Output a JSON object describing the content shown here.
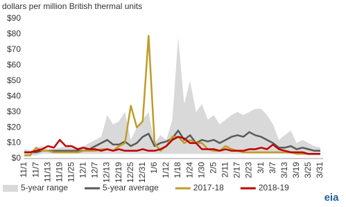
{
  "chart_data": {
    "type": "line",
    "title": "dollars per million British thermal units",
    "categories": [
      "11/1",
      null,
      "11/7",
      null,
      "11/13",
      null,
      "11/19",
      null,
      "11/25",
      null,
      "12/1",
      null,
      "12/7",
      null,
      "12/13",
      null,
      "12/19",
      null,
      "12/25",
      null,
      "12/31",
      null,
      "1/6",
      null,
      "1/12",
      null,
      "1/18",
      null,
      "1/24",
      null,
      "1/30",
      null,
      "2/5",
      null,
      "2/11",
      null,
      "2/17",
      null,
      "2/23",
      null,
      "3/1",
      null,
      "3/7",
      null,
      "3/13",
      null,
      "3/19",
      null,
      "3/25",
      null,
      "3/31"
    ],
    "series": [
      {
        "name": "5-year range",
        "color": "#d9d9d9",
        "values": [
          6,
          5,
          7,
          8,
          6,
          6,
          7,
          8,
          7,
          7,
          8,
          10,
          12,
          14,
          28,
          22,
          24,
          30,
          12,
          20,
          25,
          30,
          10,
          15,
          12,
          25,
          78,
          35,
          50,
          30,
          35,
          25,
          28,
          22,
          25,
          28,
          30,
          28,
          30,
          32,
          32,
          28,
          22,
          12,
          15,
          18,
          10,
          12,
          10,
          8,
          7
        ],
        "low": [
          2,
          2,
          2,
          3,
          3,
          3,
          3,
          3,
          3,
          3,
          3,
          3,
          3,
          3,
          3,
          3,
          3,
          3,
          3,
          3,
          3,
          3,
          3,
          3,
          3,
          3,
          3,
          3,
          3,
          3,
          3,
          3,
          3,
          3,
          3,
          3,
          3,
          3,
          3,
          3,
          3,
          3,
          3,
          3,
          3,
          3,
          3,
          3,
          2,
          2,
          2
        ]
      },
      {
        "name": "5-year average",
        "color": "#595959",
        "values": [
          4,
          4,
          4,
          5,
          5,
          5,
          5,
          5,
          5,
          5,
          5,
          6,
          8,
          10,
          12,
          9,
          9,
          11,
          8,
          10,
          14,
          16,
          8,
          10,
          11,
          13,
          18,
          12,
          15,
          10,
          12,
          11,
          12,
          10,
          12,
          14,
          15,
          14,
          17,
          15,
          14,
          12,
          10,
          7,
          7,
          8,
          6,
          7,
          6,
          5,
          5
        ]
      },
      {
        "name": "2017-18",
        "color": "#c09b27",
        "values": [
          2,
          2,
          7,
          5,
          5,
          4,
          4,
          4,
          4,
          4,
          5,
          5,
          5,
          6,
          6,
          5,
          8,
          10,
          34,
          20,
          24,
          79,
          10,
          5,
          8,
          14,
          14,
          10,
          12,
          10,
          10,
          6,
          5,
          5,
          8,
          6,
          5,
          4,
          4,
          4,
          4,
          4,
          4,
          4,
          4,
          4,
          3,
          3,
          3,
          3,
          3
        ]
      },
      {
        "name": "2018-19",
        "color": "#c00000",
        "values": [
          4,
          4,
          5,
          6,
          8,
          7,
          12,
          8,
          8,
          6,
          7,
          6,
          6,
          5,
          6,
          5,
          6,
          5,
          5,
          5,
          6,
          5,
          5,
          6,
          8,
          12,
          14,
          13,
          10,
          10,
          6,
          6,
          6,
          5,
          6,
          5,
          5,
          5,
          6,
          6,
          7,
          6,
          9,
          6,
          5,
          4,
          4,
          4,
          3,
          3,
          3
        ]
      }
    ],
    "ylim": [
      0,
      90
    ],
    "yticks": [
      {
        "value": 0,
        "label": "$0"
      },
      {
        "value": 10,
        "label": "$10"
      },
      {
        "value": 20,
        "label": "$20"
      },
      {
        "value": 30,
        "label": "$30"
      },
      {
        "value": 40,
        "label": "$40"
      },
      {
        "value": 50,
        "label": "$50"
      },
      {
        "value": 60,
        "label": "$60"
      },
      {
        "value": 70,
        "label": "$70"
      },
      {
        "value": 80,
        "label": "$80"
      },
      {
        "value": 90,
        "label": "$90"
      }
    ],
    "grid": false,
    "legend": "bottom"
  },
  "logo": "eia"
}
